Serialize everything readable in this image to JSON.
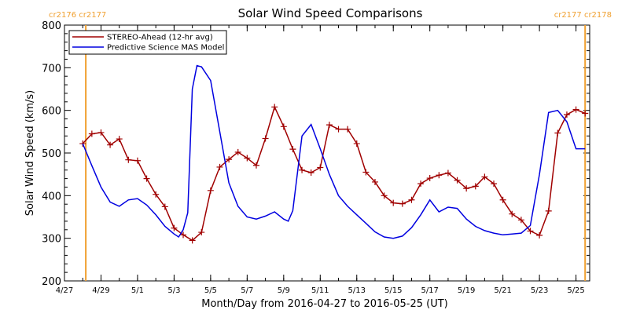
{
  "chart_data": {
    "type": "line",
    "title": "Solar Wind Speed Comparisons",
    "xlabel": "Month/Day from 2016-04-27 to 2016-05-25 (UT)",
    "ylabel": "Solar Wind Speed (km/s)",
    "ylim": [
      200,
      800
    ],
    "xlim": [
      "2016-04-27T00:00",
      "2016-05-25T18:00"
    ],
    "yticks": [
      200,
      300,
      400,
      500,
      600,
      700,
      800
    ],
    "xticks": [
      {
        "date": "2016-04-27",
        "label": "4/27"
      },
      {
        "date": "2016-04-29",
        "label": "4/29"
      },
      {
        "date": "2016-05-01",
        "label": "5/1"
      },
      {
        "date": "2016-05-03",
        "label": "5/3"
      },
      {
        "date": "2016-05-05",
        "label": "5/5"
      },
      {
        "date": "2016-05-07",
        "label": "5/7"
      },
      {
        "date": "2016-05-09",
        "label": "5/9"
      },
      {
        "date": "2016-05-11",
        "label": "5/11"
      },
      {
        "date": "2016-05-13",
        "label": "5/13"
      },
      {
        "date": "2016-05-15",
        "label": "5/15"
      },
      {
        "date": "2016-05-17",
        "label": "5/17"
      },
      {
        "date": "2016-05-19",
        "label": "5/19"
      },
      {
        "date": "2016-05-21",
        "label": "5/21"
      },
      {
        "date": "2016-05-23",
        "label": "5/23"
      },
      {
        "date": "2016-05-25",
        "label": "5/25"
      }
    ],
    "grid": false,
    "legend": "top-left",
    "rotation_markers": [
      {
        "date": "2016-04-28T04:00",
        "label": "cr2176 cr2177",
        "label_side": "top-left",
        "color": "#f0a030"
      },
      {
        "date": "2016-05-25T12:00",
        "label": "cr2177 cr2178",
        "label_side": "top-right",
        "color": "#f0a030"
      }
    ],
    "series": [
      {
        "name": "STEREO-Ahead (12-hr avg)",
        "color": "#a00000",
        "marker": "plus",
        "x": [
          "2016-04-28T00:00",
          "2016-04-28T12:00",
          "2016-04-29T00:00",
          "2016-04-29T12:00",
          "2016-04-30T00:00",
          "2016-04-30T12:00",
          "2016-05-01T00:00",
          "2016-05-01T12:00",
          "2016-05-02T00:00",
          "2016-05-02T12:00",
          "2016-05-03T00:00",
          "2016-05-03T12:00",
          "2016-05-04T00:00",
          "2016-05-04T12:00",
          "2016-05-05T00:00",
          "2016-05-05T12:00",
          "2016-05-06T00:00",
          "2016-05-06T12:00",
          "2016-05-07T00:00",
          "2016-05-07T12:00",
          "2016-05-08T00:00",
          "2016-05-08T12:00",
          "2016-05-09T00:00",
          "2016-05-09T12:00",
          "2016-05-10T00:00",
          "2016-05-10T12:00",
          "2016-05-11T00:00",
          "2016-05-11T12:00",
          "2016-05-12T00:00",
          "2016-05-12T12:00",
          "2016-05-13T00:00",
          "2016-05-13T12:00",
          "2016-05-14T00:00",
          "2016-05-14T12:00",
          "2016-05-15T00:00",
          "2016-05-15T12:00",
          "2016-05-16T00:00",
          "2016-05-16T12:00",
          "2016-05-17T00:00",
          "2016-05-17T12:00",
          "2016-05-18T00:00",
          "2016-05-18T12:00",
          "2016-05-19T00:00",
          "2016-05-19T12:00",
          "2016-05-20T00:00",
          "2016-05-20T12:00",
          "2016-05-21T00:00",
          "2016-05-21T12:00",
          "2016-05-22T00:00",
          "2016-05-22T12:00",
          "2016-05-23T00:00",
          "2016-05-23T12:00",
          "2016-05-24T00:00",
          "2016-05-24T12:00",
          "2016-05-25T00:00",
          "2016-05-25T12:00"
        ],
        "y": [
          522,
          545,
          548,
          519,
          533,
          484,
          482,
          440,
          403,
          374,
          324,
          308,
          295,
          314,
          412,
          467,
          485,
          502,
          488,
          471,
          534,
          608,
          562,
          509,
          460,
          454,
          466,
          566,
          556,
          556,
          522,
          455,
          432,
          400,
          383,
          381,
          390,
          428,
          441,
          448,
          453,
          436,
          417,
          422,
          444,
          428,
          390,
          357,
          343,
          317,
          307,
          364,
          547,
          590,
          602,
          593
        ]
      },
      {
        "name": "Predictive Science MAS Model",
        "color": "#0000e0",
        "marker": "none",
        "x": [
          "2016-04-28T00:00",
          "2016-04-28T12:00",
          "2016-04-29T00:00",
          "2016-04-29T12:00",
          "2016-04-30T00:00",
          "2016-04-30T12:00",
          "2016-05-01T00:00",
          "2016-05-01T12:00",
          "2016-05-02T00:00",
          "2016-05-02T12:00",
          "2016-05-03T00:00",
          "2016-05-03T06:00",
          "2016-05-03T12:00",
          "2016-05-03T18:00",
          "2016-05-04T00:00",
          "2016-05-04T06:00",
          "2016-05-04T12:00",
          "2016-05-05T00:00",
          "2016-05-05T12:00",
          "2016-05-06T00:00",
          "2016-05-06T12:00",
          "2016-05-07T00:00",
          "2016-05-07T12:00",
          "2016-05-08T00:00",
          "2016-05-08T12:00",
          "2016-05-09T00:00",
          "2016-05-09T06:00",
          "2016-05-09T12:00",
          "2016-05-10T00:00",
          "2016-05-10T12:00",
          "2016-05-11T00:00",
          "2016-05-11T12:00",
          "2016-05-12T00:00",
          "2016-05-12T12:00",
          "2016-05-13T00:00",
          "2016-05-13T12:00",
          "2016-05-14T00:00",
          "2016-05-14T12:00",
          "2016-05-15T00:00",
          "2016-05-15T12:00",
          "2016-05-16T00:00",
          "2016-05-16T12:00",
          "2016-05-17T00:00",
          "2016-05-17T12:00",
          "2016-05-18T00:00",
          "2016-05-18T12:00",
          "2016-05-19T00:00",
          "2016-05-19T12:00",
          "2016-05-20T00:00",
          "2016-05-20T12:00",
          "2016-05-21T00:00",
          "2016-05-21T12:00",
          "2016-05-22T00:00",
          "2016-05-22T12:00",
          "2016-05-23T00:00",
          "2016-05-23T12:00",
          "2016-05-24T00:00",
          "2016-05-24T12:00",
          "2016-05-25T00:00",
          "2016-05-25T12:00"
        ],
        "y": [
          522,
          470,
          420,
          385,
          375,
          390,
          393,
          378,
          355,
          328,
          310,
          303,
          320,
          360,
          650,
          705,
          702,
          670,
          550,
          430,
          375,
          350,
          345,
          352,
          362,
          345,
          340,
          365,
          540,
          567,
          510,
          450,
          400,
          375,
          355,
          335,
          315,
          303,
          300,
          305,
          325,
          355,
          390,
          362,
          373,
          370,
          345,
          328,
          318,
          312,
          308,
          310,
          312,
          330,
          450,
          595,
          600,
          573,
          510,
          510
        ]
      }
    ]
  }
}
